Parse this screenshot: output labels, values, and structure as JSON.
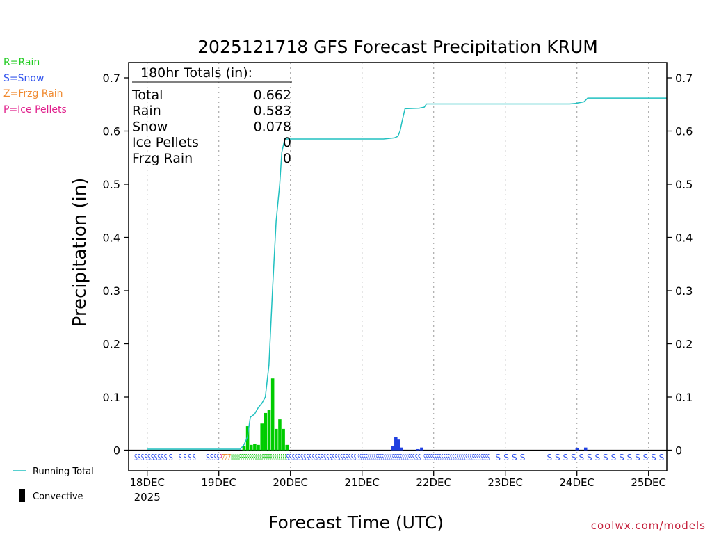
{
  "title": "2025121718 GFS Forecast Precipitation KRUM",
  "ylabel": "Precipitation (in)",
  "xlabel": "Forecast Time (UTC)",
  "credit": "coolwx.com/models",
  "ptype_legend": [
    {
      "text": "R=Rain",
      "color": "#22cc22"
    },
    {
      "text": "S=Snow",
      "color": "#3355ee"
    },
    {
      "text": "Z=Frzg Rain",
      "color": "#f08a30"
    },
    {
      "text": "P=Ice Pellets",
      "color": "#e0208c"
    }
  ],
  "line_legend": {
    "running_total": "Running Total",
    "convective": "Convective"
  },
  "totals": {
    "header": "180hr Totals (in):",
    "rows": [
      {
        "label": "Total",
        "value": "0.662"
      },
      {
        "label": "Rain",
        "value": "0.583"
      },
      {
        "label": "Snow",
        "value": "0.078"
      },
      {
        "label": "Ice Pellets",
        "value": "0"
      },
      {
        "label": "Frzg Rain",
        "value": "0"
      }
    ]
  },
  "chart_data": {
    "type": "bar",
    "title": "2025121718 GFS Forecast Precipitation KRUM",
    "xlabel": "Forecast Time (UTC)",
    "ylabel": "Precipitation (in)",
    "ylim": [
      -0.02,
      0.73
    ],
    "xlim": [
      -0.06,
      7.25
    ],
    "yticks": [
      0,
      0.1,
      0.2,
      0.3,
      0.4,
      0.5,
      0.6,
      0.7
    ],
    "ytick_labels": [
      "0",
      "0.1",
      "0.2",
      "0.3",
      "0.4",
      "0.5",
      "0.6",
      "0.7"
    ],
    "xticks": [
      0,
      1,
      2,
      3,
      4,
      5,
      6,
      7
    ],
    "xtick_labels": [
      "18DEC",
      "19DEC",
      "20DEC",
      "21DEC",
      "22DEC",
      "23DEC",
      "24DEC",
      "25DEC"
    ],
    "xtick_sublabel": "2025",
    "grid": "vertical dotted",
    "x_units": "days after 18DEC 00 UTC",
    "series": [
      {
        "name": "Running Total",
        "type": "line",
        "color": "#20c0c0",
        "x": [
          0.0,
          1.3,
          1.35,
          1.4,
          1.44,
          1.5,
          1.55,
          1.6,
          1.65,
          1.7,
          1.75,
          1.8,
          1.85,
          1.88,
          1.92,
          2.0,
          2.5,
          2.8,
          3.0,
          3.15,
          3.3,
          3.45,
          3.5,
          3.53,
          3.57,
          3.6,
          3.8,
          3.87,
          3.9,
          4.5,
          5.0,
          5.5,
          5.9,
          5.98,
          6.1,
          6.15,
          6.5,
          7.25
        ],
        "y": [
          0.002,
          0.002,
          0.01,
          0.025,
          0.062,
          0.068,
          0.08,
          0.088,
          0.1,
          0.16,
          0.3,
          0.43,
          0.5,
          0.56,
          0.585,
          0.585,
          0.585,
          0.585,
          0.585,
          0.585,
          0.585,
          0.587,
          0.59,
          0.6,
          0.625,
          0.642,
          0.643,
          0.645,
          0.651,
          0.651,
          0.651,
          0.651,
          0.651,
          0.652,
          0.655,
          0.662,
          0.662,
          0.662
        ]
      },
      {
        "name": "Rain",
        "type": "bar",
        "color": "#00cc00",
        "x": [
          1.35,
          1.4,
          1.45,
          1.5,
          1.55,
          1.6,
          1.65,
          1.7,
          1.75,
          1.8,
          1.85,
          1.9,
          1.95
        ],
        "y": [
          0.008,
          0.045,
          0.01,
          0.012,
          0.01,
          0.05,
          0.07,
          0.076,
          0.135,
          0.04,
          0.058,
          0.04,
          0.01
        ]
      },
      {
        "name": "Snow",
        "type": "bar",
        "color": "#2040e0",
        "x": [
          3.43,
          3.47,
          3.51,
          3.55,
          3.78,
          3.83,
          6.0,
          6.12
        ],
        "y": [
          0.008,
          0.025,
          0.02,
          0.005,
          0.002,
          0.005,
          0.004,
          0.005
        ]
      }
    ],
    "ptype_strip": {
      "color_by_letter": {
        "S": "#3355ee",
        "R": "#22cc22",
        "Z": "#f08a30",
        "P": "#e0208c"
      },
      "segments": [
        {
          "x": [
            -0.18,
            0.28
          ],
          "text": "SSSSSSSSSS"
        },
        {
          "x": [
            0.3,
            0.36
          ],
          "text": "S"
        },
        {
          "x": [
            0.44,
            0.68
          ],
          "text": "S S S S"
        },
        {
          "x": [
            0.82,
            0.93
          ],
          "text": "SS"
        },
        {
          "x": [
            0.93,
            1.17
          ],
          "text": "SSPZZZ"
        },
        {
          "x": [
            1.17,
            1.95
          ],
          "text": "RRRRRRRRRRRRRRRRRRRRRRRRRRR"
        },
        {
          "x": [
            1.94,
            2.62
          ],
          "text": "SSSSSSSSSSSSSSSSS"
        },
        {
          "x": [
            2.62,
            2.92
          ],
          "text": "SSSSSSSS"
        },
        {
          "x": [
            2.94,
            3.7
          ],
          "text": "SSSSSSSSSSSSSSSSSSSSSSSSSSS"
        },
        {
          "x": [
            3.7,
            3.82
          ],
          "text": "SSS"
        },
        {
          "x": [
            3.86,
            4.78
          ],
          "text": "SSSSSSSSSSSSSSSSSSSSSSSSSSSSSS"
        },
        {
          "x": [
            4.86,
            5.28
          ],
          "text": "S S S S"
        },
        {
          "x": [
            5.58,
            7.22
          ],
          "text": "S S S S S S S S S S S S S S S"
        }
      ]
    }
  }
}
